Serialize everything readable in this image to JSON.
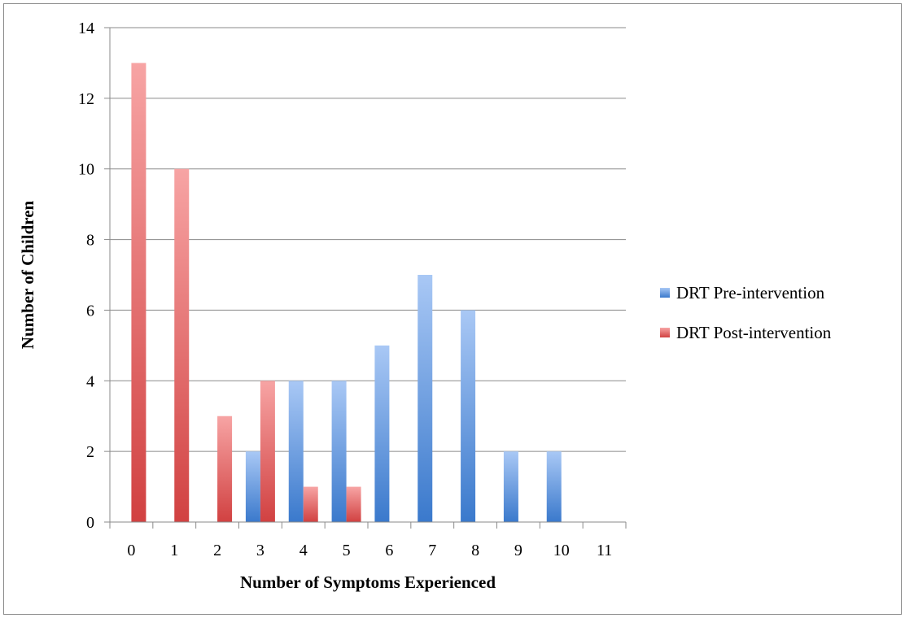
{
  "chart_data": {
    "type": "bar",
    "xlabel": "Number of Symptoms Experienced",
    "ylabel": "Number of Children",
    "categories": [
      "0",
      "1",
      "2",
      "3",
      "4",
      "5",
      "6",
      "7",
      "8",
      "9",
      "10",
      "11"
    ],
    "ylim": [
      0,
      14
    ],
    "yticks": [
      0,
      2,
      4,
      6,
      8,
      10,
      12,
      14
    ],
    "grid": true,
    "legend_position": "right",
    "series": [
      {
        "name": "DRT Pre-intervention",
        "color_light": "#a9c8f5",
        "color_dark": "#3a79cc",
        "values": [
          0,
          0,
          0,
          2,
          4,
          4,
          5,
          7,
          6,
          2,
          2,
          0
        ]
      },
      {
        "name": "DRT Post-intervention",
        "color_light": "#f7a4a4",
        "color_dark": "#d14141",
        "values": [
          13,
          10,
          3,
          4,
          1,
          1,
          0,
          0,
          0,
          0,
          0,
          0
        ]
      }
    ]
  }
}
